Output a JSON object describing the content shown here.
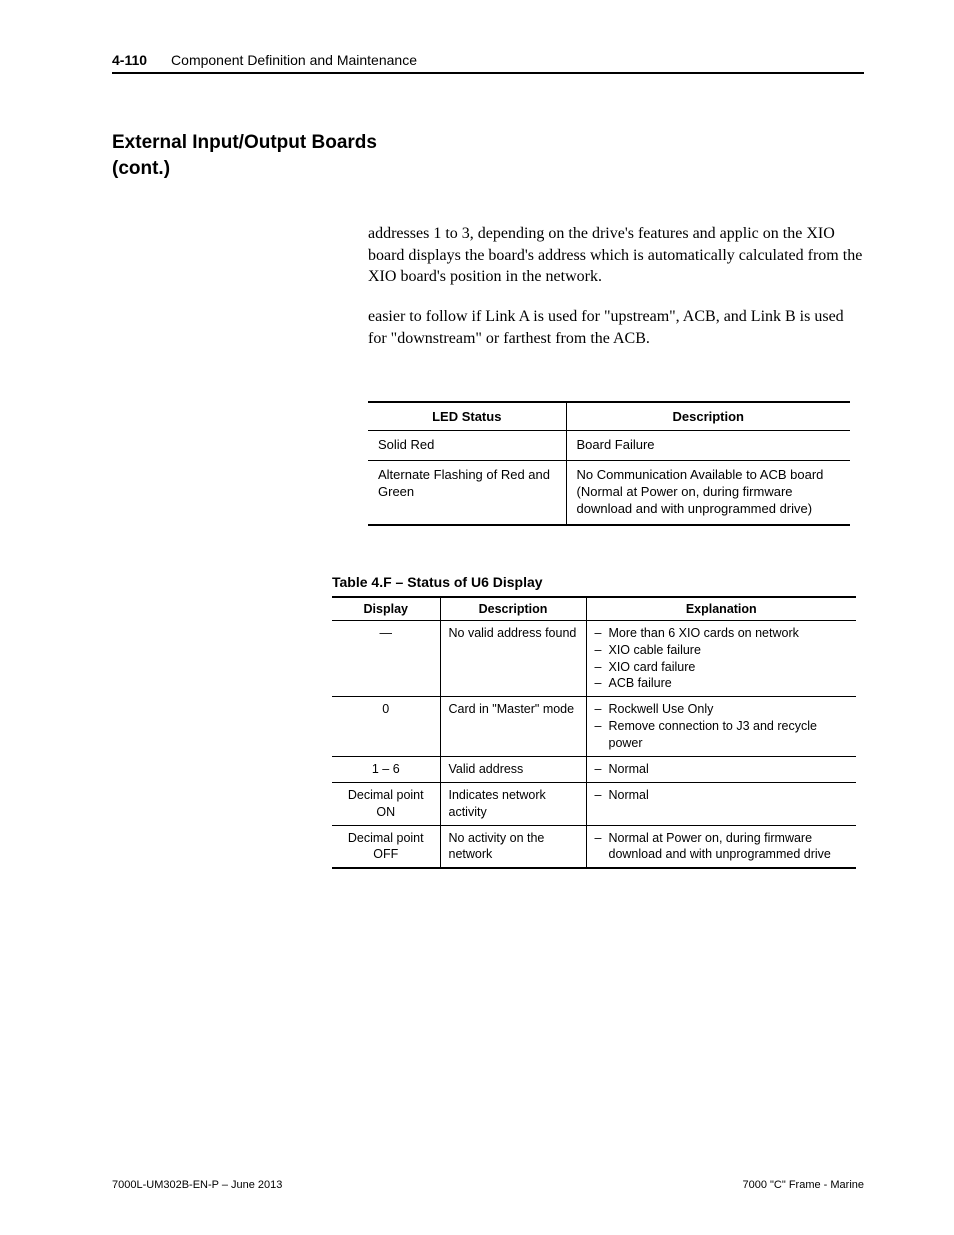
{
  "header": {
    "page_number": "4-110",
    "title": "Component Definition and Maintenance"
  },
  "section_title": "External Input/Output Boards (cont.)",
  "paragraphs": {
    "p1": "addresses 1 to 3, depending on the drive's features and applic on the XIO board displays the board's address which is automatically calculated from the XIO board's position in the network.",
    "p2": "easier to follow if Link A is used for \"upstream\", ACB, and Link B is used for \"downstream\" or farthest from the ACB."
  },
  "table1": {
    "headers": {
      "col1": "LED Status",
      "col2": "Description"
    },
    "rows": [
      {
        "c1": "Solid Red",
        "c2": "Board Failure"
      },
      {
        "c1": "Alternate Flashing of Red and Green",
        "c2": "No Communication Available to ACB board (Normal at Power on, during firmware download and with unprogrammed drive)"
      }
    ]
  },
  "table2": {
    "caption": "Table 4.F – Status of U6 Display",
    "headers": {
      "col1": "Display",
      "col2": "Description",
      "col3": "Explanation"
    },
    "rows": [
      {
        "c1": "—",
        "c2": "No valid address found",
        "c3": [
          "More than 6 XIO cards on network",
          "XIO cable failure",
          "XIO card failure",
          "ACB failure"
        ]
      },
      {
        "c1": "0",
        "c2": "Card in \"Master\" mode",
        "c3": [
          "Rockwell Use Only",
          "Remove connection to J3 and recycle power"
        ]
      },
      {
        "c1": "1 – 6",
        "c2": "Valid address",
        "c3": [
          "Normal"
        ]
      },
      {
        "c1": "Decimal point ON",
        "c2": "Indicates network activity",
        "c3": [
          "Normal"
        ]
      },
      {
        "c1": "Decimal point OFF",
        "c2": "No activity on the network",
        "c3": [
          "Normal at Power on, during firmware download and with unprogrammed drive"
        ]
      }
    ]
  },
  "footer": {
    "left": "7000L-UM302B-EN-P – June 2013",
    "right": "7000 \"C\" Frame - Marine"
  }
}
